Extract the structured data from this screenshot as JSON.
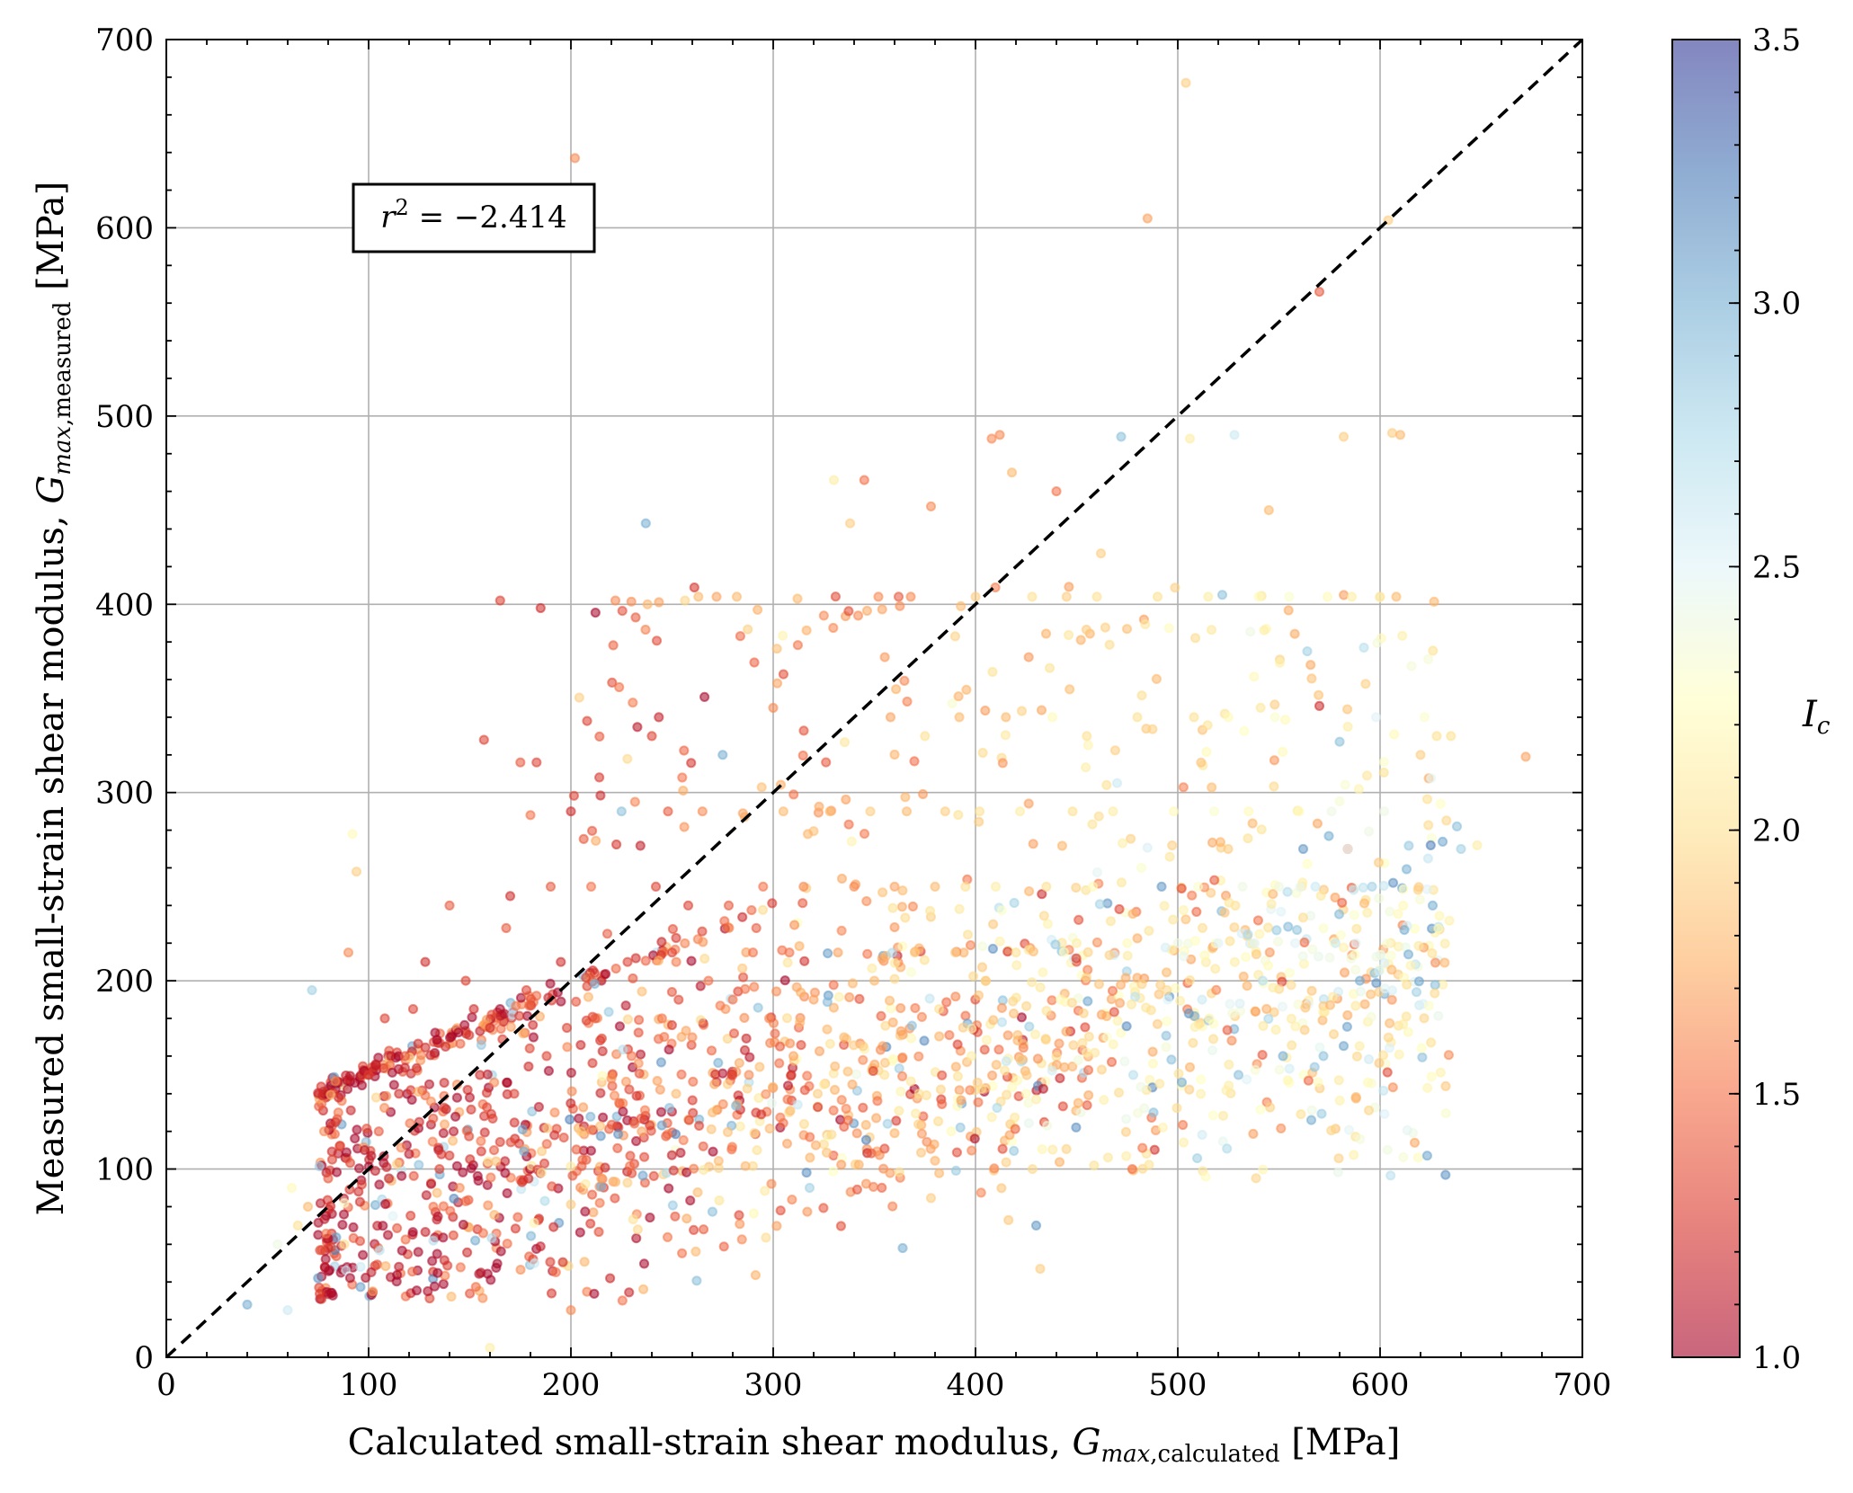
{
  "chart_data": {
    "type": "scatter",
    "xlabel": "Calculated small-strain shear modulus,",
    "xlabel_math": "G",
    "xlabel_sub_italic": "max",
    "xlabel_sub_text": ",calculated",
    "xlabel_unit": "[MPa]",
    "ylabel": "Measured small-strain shear modulus,",
    "ylabel_math": "G",
    "ylabel_sub_italic": "max",
    "ylabel_sub_text": ",measured",
    "ylabel_unit": "[MPa]",
    "xlim": [
      0,
      700
    ],
    "ylim": [
      0,
      700
    ],
    "xticks": [
      0,
      100,
      200,
      300,
      400,
      500,
      600,
      700
    ],
    "yticks": [
      0,
      100,
      200,
      300,
      400,
      500,
      600,
      700
    ],
    "grid": true,
    "annotation": {
      "var": "r",
      "power": "2",
      "text": " = −2.414"
    },
    "reference_line": {
      "type": "1:1",
      "style": "dashed",
      "color": "#000000"
    },
    "colorbar": {
      "label": "I",
      "label_sub": "c",
      "min": 1.0,
      "max": 3.5,
      "ticks": [
        1.0,
        1.5,
        2.0,
        2.5,
        3.0,
        3.5
      ],
      "tick_labels": [
        "1.0",
        "1.5",
        "2.0",
        "2.5",
        "3.0",
        "3.5"
      ],
      "colormap": "RdYlBu",
      "stops": [
        "#a50026",
        "#d73027",
        "#f46d43",
        "#fdae61",
        "#fee090",
        "#ffffbf",
        "#e0f3f8",
        "#abd9e9",
        "#74add1",
        "#4575b4",
        "#313695"
      ]
    },
    "points_note": "Approximately 2000 points; a representative subset is listed as [x, y, Ic]",
    "points": [
      [
        40,
        28,
        3.0
      ],
      [
        55,
        60,
        2.4
      ],
      [
        60,
        25,
        2.6
      ],
      [
        62,
        90,
        2.2
      ],
      [
        65,
        70,
        2.0
      ],
      [
        70,
        80,
        1.8
      ],
      [
        72,
        195,
        2.8
      ],
      [
        75,
        42,
        3.1
      ],
      [
        78,
        120,
        1.6
      ],
      [
        80,
        95,
        1.4
      ],
      [
        82,
        105,
        1.3
      ],
      [
        85,
        130,
        1.5
      ],
      [
        88,
        60,
        2.0
      ],
      [
        90,
        215,
        1.6
      ],
      [
        92,
        278,
        2.2
      ],
      [
        94,
        258,
        1.9
      ],
      [
        95,
        88,
        1.2
      ],
      [
        98,
        110,
        1.1
      ],
      [
        100,
        150,
        1.3
      ],
      [
        102,
        35,
        1.7
      ],
      [
        105,
        120,
        1.4
      ],
      [
        108,
        180,
        1.3
      ],
      [
        110,
        95,
        1.2
      ],
      [
        112,
        75,
        2.5
      ],
      [
        115,
        140,
        1.2
      ],
      [
        118,
        160,
        1.4
      ],
      [
        120,
        108,
        1.1
      ],
      [
        122,
        185,
        1.3
      ],
      [
        125,
        125,
        1.2
      ],
      [
        128,
        210,
        1.2
      ],
      [
        130,
        145,
        1.1
      ],
      [
        132,
        80,
        1.5
      ],
      [
        135,
        100,
        1.3
      ],
      [
        138,
        165,
        1.2
      ],
      [
        140,
        240,
        1.4
      ],
      [
        142,
        120,
        1.1
      ],
      [
        145,
        90,
        1.6
      ],
      [
        148,
        200,
        1.3
      ],
      [
        150,
        138,
        1.1
      ],
      [
        152,
        185,
        1.2
      ],
      [
        155,
        150,
        1.2
      ],
      [
        157,
        328,
        1.3
      ],
      [
        160,
        175,
        1.2
      ],
      [
        162,
        110,
        1.4
      ],
      [
        165,
        402,
        1.3
      ],
      [
        168,
        228,
        1.4
      ],
      [
        170,
        245,
        1.2
      ],
      [
        172,
        140,
        1.3
      ],
      [
        175,
        316,
        1.4
      ],
      [
        178,
        195,
        1.3
      ],
      [
        180,
        288,
        1.5
      ],
      [
        183,
        316,
        1.3
      ],
      [
        185,
        398,
        1.2
      ],
      [
        188,
        160,
        1.3
      ],
      [
        190,
        250,
        1.4
      ],
      [
        192,
        130,
        1.6
      ],
      [
        195,
        210,
        1.2
      ],
      [
        198,
        175,
        1.3
      ],
      [
        200,
        290,
        1.2
      ],
      [
        200,
        25,
        1.6
      ],
      [
        202,
        637,
        1.6
      ],
      [
        205,
        120,
        1.9
      ],
      [
        208,
        338,
        1.3
      ],
      [
        210,
        250,
        1.5
      ],
      [
        212,
        180,
        1.4
      ],
      [
        215,
        95,
        1.7
      ],
      [
        218,
        225,
        1.4
      ],
      [
        220,
        148,
        1.6
      ],
      [
        222,
        402,
        1.6
      ],
      [
        225,
        290,
        2.9
      ],
      [
        228,
        210,
        1.3
      ],
      [
        230,
        160,
        1.5
      ],
      [
        232,
        393,
        1.4
      ],
      [
        235,
        120,
        1.7
      ],
      [
        237,
        443,
        3.0
      ],
      [
        240,
        330,
        1.3
      ],
      [
        242,
        250,
        1.3
      ],
      [
        245,
        180,
        1.5
      ],
      [
        248,
        290,
        1.4
      ],
      [
        250,
        215,
        1.3
      ],
      [
        252,
        140,
        1.8
      ],
      [
        255,
        308,
        1.5
      ],
      [
        258,
        240,
        1.3
      ],
      [
        260,
        170,
        1.6
      ],
      [
        263,
        404,
        1.8
      ],
      [
        265,
        290,
        1.6
      ],
      [
        268,
        200,
        1.5
      ],
      [
        270,
        130,
        1.8
      ],
      [
        272,
        404,
        1.7
      ],
      [
        275,
        320,
        3.0
      ],
      [
        278,
        240,
        1.4
      ],
      [
        280,
        190,
        1.5
      ],
      [
        282,
        404,
        1.8
      ],
      [
        285,
        289,
        1.7
      ],
      [
        288,
        150,
        1.6
      ],
      [
        290,
        215,
        1.5
      ],
      [
        292,
        110,
        2.0
      ],
      [
        295,
        250,
        1.5
      ],
      [
        298,
        180,
        1.6
      ],
      [
        300,
        345,
        1.6
      ],
      [
        302,
        358,
        1.7
      ],
      [
        305,
        290,
        1.8
      ],
      [
        308,
        215,
        1.5
      ],
      [
        310,
        160,
        1.7
      ],
      [
        312,
        403,
        1.8
      ],
      [
        315,
        250,
        1.6
      ],
      [
        318,
        90,
        2.8
      ],
      [
        320,
        190,
        1.7
      ],
      [
        322,
        140,
        1.9
      ],
      [
        325,
        394,
        1.6
      ],
      [
        328,
        290,
        1.8
      ],
      [
        330,
        466,
        2.1
      ],
      [
        332,
        215,
        1.7
      ],
      [
        335,
        170,
        1.8
      ],
      [
        338,
        443,
        1.9
      ],
      [
        340,
        250,
        1.6
      ],
      [
        342,
        394,
        1.6
      ],
      [
        345,
        466,
        1.5
      ],
      [
        348,
        290,
        1.9
      ],
      [
        350,
        200,
        1.8
      ],
      [
        352,
        404,
        1.6
      ],
      [
        355,
        150,
        2.0
      ],
      [
        358,
        340,
        1.7
      ],
      [
        360,
        250,
        1.7
      ],
      [
        362,
        404,
        1.4
      ],
      [
        364,
        58,
        3.0
      ],
      [
        366,
        290,
        1.8
      ],
      [
        368,
        404,
        1.6
      ],
      [
        370,
        215,
        1.9
      ],
      [
        372,
        140,
        2.0
      ],
      [
        375,
        330,
        2.0
      ],
      [
        378,
        452,
        1.6
      ],
      [
        380,
        250,
        1.8
      ],
      [
        382,
        185,
        2.0
      ],
      [
        385,
        290,
        1.9
      ],
      [
        388,
        120,
        2.2
      ],
      [
        390,
        215,
        1.9
      ],
      [
        392,
        340,
        1.8
      ],
      [
        395,
        250,
        2.0
      ],
      [
        398,
        160,
        2.1
      ],
      [
        400,
        404,
        1.9
      ],
      [
        402,
        290,
        2.0
      ],
      [
        405,
        200,
        1.9
      ],
      [
        408,
        488,
        1.6
      ],
      [
        410,
        250,
        2.1
      ],
      [
        412,
        490,
        1.6
      ],
      [
        415,
        340,
        1.8
      ],
      [
        418,
        470,
        1.8
      ],
      [
        420,
        215,
        2.0
      ],
      [
        422,
        290,
        2.1
      ],
      [
        425,
        140,
        2.2
      ],
      [
        428,
        404,
        2.0
      ],
      [
        430,
        70,
        3.1
      ],
      [
        432,
        47,
        1.9
      ],
      [
        435,
        250,
        2.0
      ],
      [
        438,
        340,
        2.2
      ],
      [
        440,
        460,
        1.5
      ],
      [
        442,
        190,
        2.2
      ],
      [
        445,
        404,
        1.9
      ],
      [
        448,
        290,
        2.0
      ],
      [
        450,
        220,
        2.1
      ],
      [
        452,
        130,
        2.4
      ],
      [
        455,
        330,
        2.0
      ],
      [
        458,
        250,
        2.2
      ],
      [
        460,
        404,
        2.0
      ],
      [
        462,
        427,
        1.9
      ],
      [
        465,
        170,
        2.3
      ],
      [
        468,
        290,
        2.1
      ],
      [
        470,
        305,
        2.6
      ],
      [
        472,
        489,
        2.9
      ],
      [
        475,
        220,
        2.2
      ],
      [
        478,
        150,
        2.7
      ],
      [
        480,
        340,
        2.0
      ],
      [
        482,
        260,
        2.3
      ],
      [
        485,
        605,
        1.7
      ],
      [
        488,
        130,
        2.9
      ],
      [
        490,
        404,
        2.0
      ],
      [
        492,
        250,
        3.1
      ],
      [
        495,
        190,
        2.5
      ],
      [
        498,
        290,
        2.2
      ],
      [
        500,
        220,
        2.4
      ],
      [
        502,
        146,
        3.0
      ],
      [
        504,
        677,
        1.9
      ],
      [
        506,
        488,
        2.1
      ],
      [
        508,
        340,
        2.0
      ],
      [
        510,
        250,
        2.3
      ],
      [
        512,
        190,
        2.6
      ],
      [
        515,
        404,
        2.1
      ],
      [
        518,
        290,
        2.3
      ],
      [
        520,
        220,
        2.5
      ],
      [
        522,
        405,
        2.9
      ],
      [
        525,
        340,
        2.2
      ],
      [
        528,
        490,
        2.6
      ],
      [
        530,
        150,
        2.9
      ],
      [
        532,
        250,
        2.4
      ],
      [
        535,
        290,
        2.2
      ],
      [
        538,
        220,
        2.5
      ],
      [
        540,
        404,
        2.2
      ],
      [
        542,
        200,
        2.7
      ],
      [
        545,
        450,
        1.8
      ],
      [
        548,
        340,
        2.3
      ],
      [
        550,
        250,
        2.4
      ],
      [
        552,
        160,
        3.0
      ],
      [
        555,
        404,
        2.3
      ],
      [
        558,
        220,
        2.5
      ],
      [
        560,
        290,
        2.2
      ],
      [
        562,
        270,
        3.1
      ],
      [
        564,
        375,
        2.8
      ],
      [
        566,
        126,
        3.0
      ],
      [
        568,
        250,
        2.6
      ],
      [
        570,
        566,
        1.4
      ],
      [
        570,
        346,
        1.2
      ],
      [
        572,
        160,
        2.9
      ],
      [
        574,
        404,
        2.2
      ],
      [
        576,
        290,
        2.4
      ],
      [
        578,
        220,
        2.6
      ],
      [
        580,
        327,
        2.9
      ],
      [
        582,
        489,
        1.9
      ],
      [
        584,
        270,
        2.5
      ],
      [
        586,
        404,
        2.1
      ],
      [
        588,
        220,
        2.5
      ],
      [
        590,
        200,
        3.0
      ],
      [
        592,
        377,
        2.7
      ],
      [
        594,
        146,
        2.2
      ],
      [
        596,
        250,
        2.8
      ],
      [
        598,
        340,
        2.5
      ],
      [
        600,
        404,
        2.0
      ],
      [
        602,
        290,
        2.4
      ],
      [
        604,
        604,
        1.9
      ],
      [
        606,
        491,
        1.9
      ],
      [
        608,
        404,
        1.8
      ],
      [
        610,
        490,
        1.8
      ],
      [
        612,
        227,
        3.0
      ],
      [
        614,
        214,
        3.0
      ],
      [
        618,
        194,
        2.8
      ],
      [
        620,
        320,
        1.9
      ],
      [
        622,
        340,
        2.3
      ],
      [
        625,
        272,
        3.2
      ],
      [
        626,
        240,
        3.0
      ],
      [
        628,
        330,
        2.0
      ],
      [
        635,
        330,
        2.0
      ],
      [
        638,
        282,
        2.9
      ],
      [
        640,
        270,
        2.8
      ],
      [
        648,
        272,
        2.1
      ],
      [
        672,
        319,
        1.7
      ],
      [
        160,
        5,
        2.1
      ],
      [
        88,
        82,
        2.3
      ],
      [
        96,
        48,
        2.6
      ],
      [
        132,
        62,
        2.7
      ],
      [
        182,
        50,
        2.6
      ]
    ]
  }
}
